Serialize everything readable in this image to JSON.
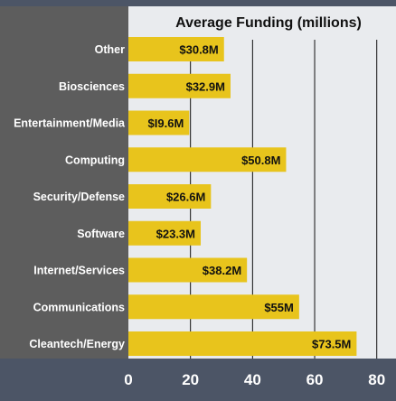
{
  "chart_data": {
    "type": "bar",
    "orientation": "horizontal",
    "title": "Average Funding (millions)",
    "categories": [
      "Other",
      "Biosciences",
      "Entertainment/Media",
      "Computing",
      "Security/Defense",
      "Software",
      "Internet/Services",
      "Communications",
      "Cleantech/Energy"
    ],
    "values": [
      30.8,
      32.9,
      19.6,
      50.8,
      26.6,
      23.3,
      38.2,
      55,
      73.5
    ],
    "value_labels": [
      "$30.8M",
      "$32.9M",
      "$I9.6M",
      "$50.8M",
      "$26.6M",
      "$23.3M",
      "$38.2M",
      "$55M",
      "$73.5M"
    ],
    "xlim": [
      0,
      86.2
    ],
    "xticks": [
      0,
      20,
      40,
      60,
      80
    ],
    "xtick_labels": [
      "0",
      "20",
      "40",
      "60",
      "80"
    ],
    "grid": true,
    "colors": {
      "background": "#4c5566",
      "plot_bg": "#e9ebee",
      "label_panel": "#5d5d5d",
      "bar": "#e8c41c",
      "gridline": "#111111"
    }
  }
}
